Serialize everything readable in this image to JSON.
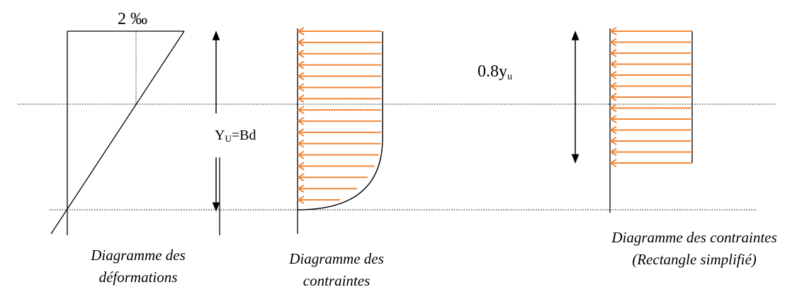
{
  "labels": {
    "strain_percent": "2 ‰",
    "neutral_axis_main": "Y",
    "neutral_axis_sub": "U",
    "neutral_axis_tail": "=Bd",
    "block_depth_main": "0.8y",
    "block_depth_sub": "u"
  },
  "captions": {
    "deformations_line1": "Diagramme des",
    "deformations_line2": "déformations",
    "stresses_line1": "Diagramme des",
    "stresses_line2": "contraintes",
    "rectangle_line1": "Diagramme des contraintes",
    "rectangle_line2": "(Rectangle simplifié)"
  },
  "colors": {
    "stroke": "#000000",
    "stress_arrow": "#f0883a"
  },
  "stress_arrows": {
    "parabolic_count": 16,
    "rectangle_count": 13
  }
}
